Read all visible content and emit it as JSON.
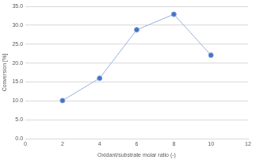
{
  "chart_data": {
    "type": "line",
    "x_label": "Oxidant/substrate molar ratio (-)",
    "y_label": "Conversion [%]",
    "x": [
      2,
      4,
      6,
      8,
      10
    ],
    "series": [
      {
        "name": "Conversion",
        "color": "#4472c4",
        "values": [
          10.1,
          16.0,
          28.8,
          32.9,
          22.1
        ],
        "marker": "circle"
      }
    ],
    "xlim": [
      0,
      12
    ],
    "xticks": [
      0,
      2,
      4,
      6,
      8,
      10,
      12
    ],
    "ylim": [
      0,
      35
    ],
    "yticks": [
      {
        "value": 0,
        "label": "0.0"
      },
      {
        "value": 5,
        "label": "5.0"
      },
      {
        "value": 10,
        "label": "10.0"
      },
      {
        "value": 15,
        "label": "15.0"
      },
      {
        "value": 20,
        "label": "20.0"
      },
      {
        "value": 25,
        "label": "25.0"
      },
      {
        "value": 30,
        "label": "30.0"
      },
      {
        "value": 35,
        "label": "35.0"
      }
    ],
    "grid": true
  }
}
